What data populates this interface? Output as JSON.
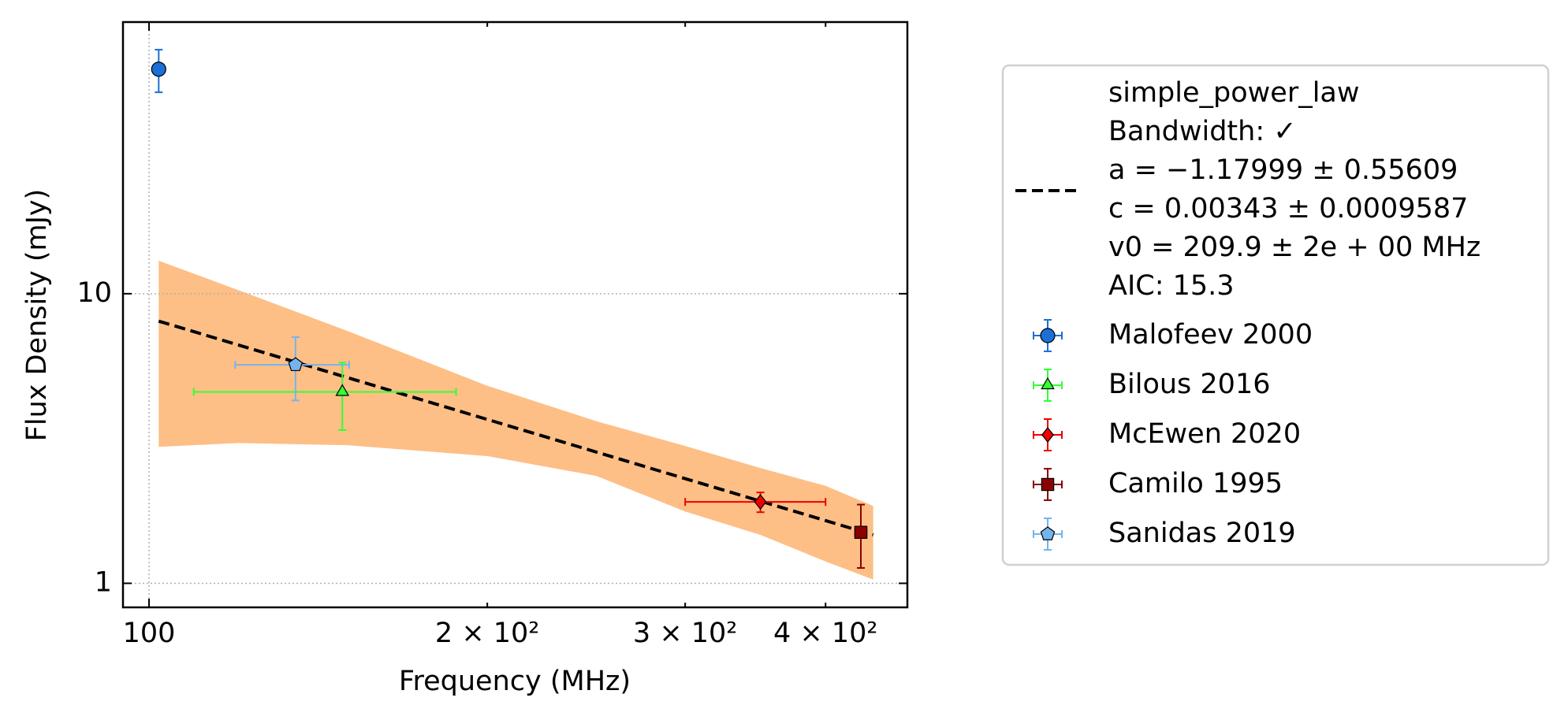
{
  "chart_data": {
    "type": "errorbar-loglog",
    "x_label": "Frequency (MHz)",
    "y_label": "Flux Density (mJy)",
    "xlim": [
      94.8,
      473
    ],
    "ylim": [
      0.826,
      86.7
    ],
    "log_x": true,
    "log_y": true,
    "xticks": [
      100,
      {
        "value": 200,
        "label": "2 × 10²"
      },
      {
        "value": 300,
        "label": "3 × 10²"
      },
      {
        "value": 400,
        "label": "4 × 10²"
      }
    ],
    "yticks": [
      1,
      10
    ],
    "grid": true,
    "fit": {
      "label": [
        "simple_power_law",
        "Bandwidth: ✓",
        "a = −1.17999 ± 0.55609",
        "c = 0.00343 ± 0.0009587",
        "v0 = 209.9 ± 2e + 00 MHz",
        "AIC: 15.3"
      ],
      "color": "#000000",
      "x": [
        102,
        441
      ],
      "values": [
        8.04,
        1.47
      ]
    },
    "band": {
      "color": "#fdbf86",
      "x": [
        102,
        120,
        150,
        200,
        250,
        300,
        350,
        400,
        441
      ],
      "upper": [
        13.0,
        10.3,
        7.45,
        4.81,
        3.63,
        2.98,
        2.5,
        2.17,
        1.85
      ],
      "lower": [
        2.96,
        3.05,
        3.0,
        2.75,
        2.35,
        1.77,
        1.47,
        1.19,
        1.03
      ]
    },
    "series": [
      {
        "name": "Malofeev 2000",
        "color": "#1c6fd4",
        "marker": "circle",
        "x": [
          102
        ],
        "x_err": [
          0
        ],
        "values": [
          59.6
        ],
        "errors": [
          10
        ]
      },
      {
        "name": "Bilous 2016",
        "color": "#33ff33",
        "marker": "triangle",
        "x": [
          148.6
        ],
        "x_err": [
          39
        ],
        "values": [
          4.58
        ],
        "errors": [
          1.2
        ]
      },
      {
        "name": "McEwen 2020",
        "color": "#ee0000",
        "marker": "diamond",
        "x": [
          350
        ],
        "x_err": [
          50
        ],
        "values": [
          1.91
        ],
        "errors": [
          0.15
        ]
      },
      {
        "name": "Camilo 1995",
        "color": "#8b0000",
        "marker": "square",
        "x": [
          430
        ],
        "x_err": [
          5
        ],
        "values": [
          1.5
        ],
        "errors": [
          0.37
        ]
      },
      {
        "name": "Sanidas 2019",
        "color": "#74b4ec",
        "marker": "pentagon",
        "x": [
          135
        ],
        "x_err": [
          15.7
        ],
        "values": [
          5.68
        ],
        "errors": [
          1.4
        ]
      }
    ]
  }
}
